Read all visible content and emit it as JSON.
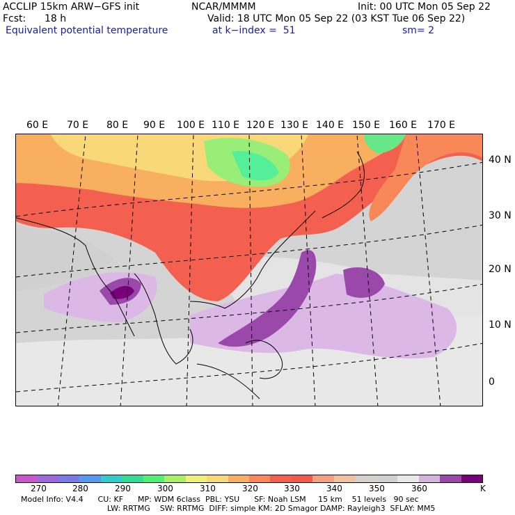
{
  "header": {
    "model": "ACCLIP 15km ARW−GFS init",
    "center": "NCAR/MMMM",
    "init": "Init: 00 UTC Mon 05 Sep 22",
    "fcst_label": "Fcst:",
    "fcst_value": "18 h",
    "valid": "Valid: 18 UTC Mon 05 Sep 22 (03 KST Tue 06 Sep 22)",
    "field": "Equivalent potential temperature",
    "level": "at k−index =  51",
    "smooth": "sm= 2"
  },
  "map": {
    "lon_labels": [
      "60 E",
      "70 E",
      "80 E",
      "90 E",
      "100 E",
      "110 E",
      "120 E",
      "130 E",
      "140 E",
      "150 E",
      "160 E",
      "170 E"
    ],
    "lat_labels": [
      "40 N",
      "30 N",
      "20 N",
      "10 N",
      "0"
    ]
  },
  "colorbar": {
    "unit": "K",
    "tick_labels": [
      "270",
      "280",
      "290",
      "300",
      "310",
      "320",
      "330",
      "340",
      "350",
      "360"
    ],
    "colors": [
      "#cc55cc",
      "#a066dd",
      "#7b7be8",
      "#5599ee",
      "#33cccc",
      "#33dd99",
      "#55ee77",
      "#aaf066",
      "#eef07a",
      "#f8d878",
      "#f8b060",
      "#f88858",
      "#f46050",
      "#f05a4a",
      "#f4a080",
      "#f0c0a0",
      "#d6d0ca",
      "#d0d0d0",
      "#e8e8e8",
      "#d6b4e0",
      "#9848a8",
      "#780078"
    ]
  },
  "footer": {
    "line1": "Model Info: V4.4      CU: KF      MP: WDM 6class  PBL: YSU      SF: Noah LSM     15 km    51 levels   90 sec",
    "line2": "LW: RRTMG    SW: RRTMG  DIFF: simple KM: 2D Smagor DAMP: Rayleigh3  SFLAY: MM5"
  }
}
